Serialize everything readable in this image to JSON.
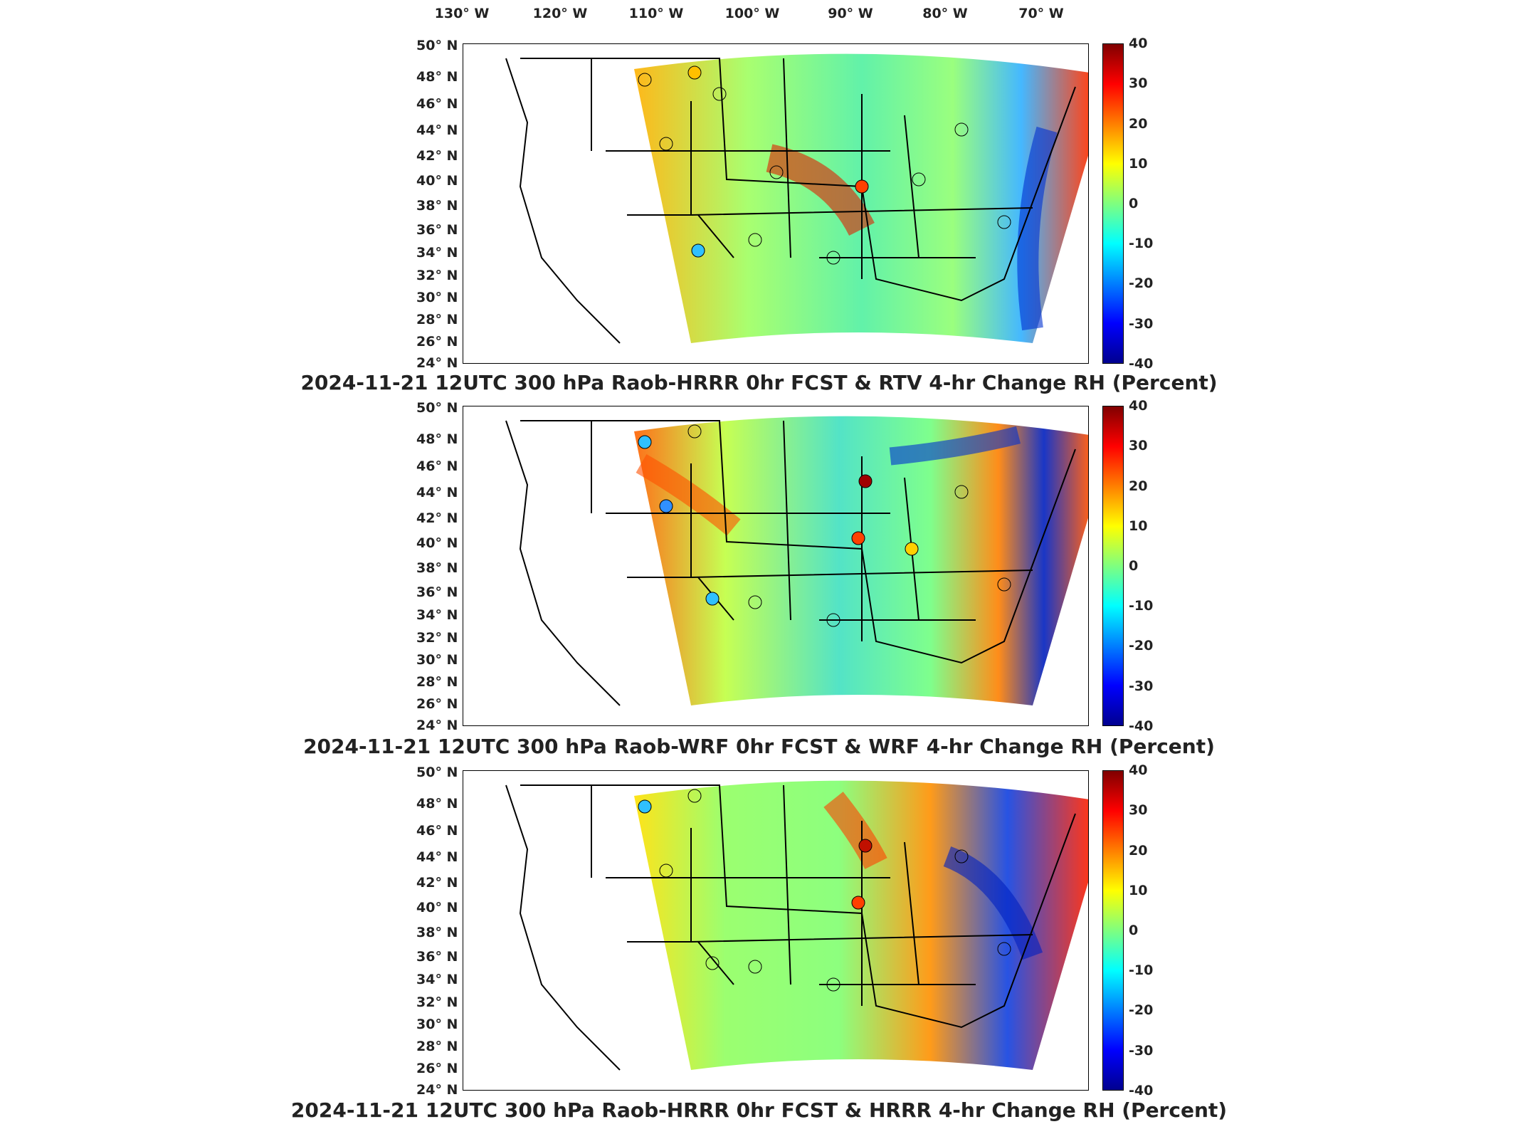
{
  "longitude_labels": [
    "130° W",
    "120° W",
    "110° W",
    "100° W",
    "90° W",
    "80° W",
    "70° W"
  ],
  "latitude_labels": [
    "50° N",
    "48° N",
    "46° N",
    "44° N",
    "42° N",
    "40° N",
    "38° N",
    "36° N",
    "34° N",
    "32° N",
    "30° N",
    "28° N",
    "26° N",
    "24° N"
  ],
  "colorbar": {
    "ticks": [
      "40",
      "30",
      "20",
      "10",
      "0",
      "-10",
      "-20",
      "-30",
      "-40"
    ],
    "min": -40,
    "max": 40,
    "colormap": [
      "#00008f",
      "#0000ff",
      "#007fff",
      "#00ffff",
      "#7fff7f",
      "#ffff00",
      "#ff7f00",
      "#ff0000",
      "#800000"
    ]
  },
  "panels": [
    {
      "title": "2024-11-21 12UTC 300 hPa Raob-HRRR 0hr FCST & RTV 4-hr Change RH (Percent)"
    },
    {
      "title": "2024-11-21 12UTC 300 hPa Raob-WRF 0hr FCST & WRF 4-hr Change RH (Percent)"
    },
    {
      "title": "2024-11-21 12UTC 300 hPa Raob-HRRR 0hr FCST & HRRR 4-hr Change RH (Percent)"
    }
  ]
}
